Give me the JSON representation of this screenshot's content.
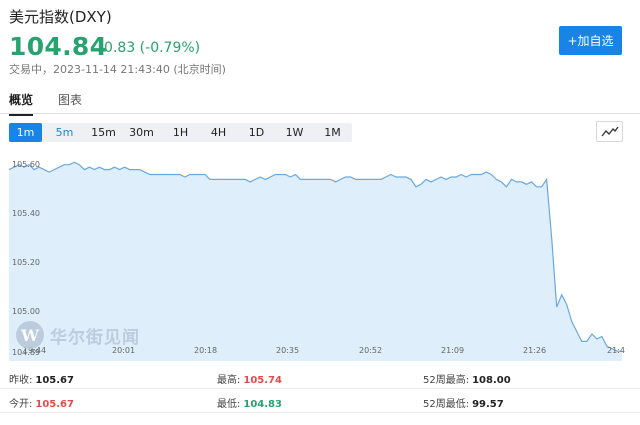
{
  "header": {
    "title": "美元指数(DXY)",
    "price": "104.84",
    "change": "-0.83 (-0.79%)",
    "status": "交易中，2023-11-14 21:43:40 (北京时间)",
    "add_button": "+加自选"
  },
  "tabs": [
    {
      "label": "概览",
      "active": true
    },
    {
      "label": "图表",
      "active": false
    }
  ],
  "intervals": [
    {
      "label": "1m",
      "active": true
    },
    {
      "label": "5m",
      "selected": true
    },
    {
      "label": "15m"
    },
    {
      "label": "30m"
    },
    {
      "label": "1H"
    },
    {
      "label": "4H"
    },
    {
      "label": "1D"
    },
    {
      "label": "1W"
    },
    {
      "label": "1M"
    }
  ],
  "chart_type_icon": "line-chart-icon",
  "watermark": {
    "logo_letter": "W",
    "text": "华尔街见闻"
  },
  "chart_data": {
    "type": "area",
    "y_tick_labels": [
      "105.60",
      "105.40",
      "105.20",
      "105.00",
      "104.89"
    ],
    "x_tick_labels": [
      "19:44",
      "20:01",
      "20:18",
      "20:35",
      "20:52",
      "21:09",
      "21:26",
      "21:4"
    ],
    "ylim": [
      104.82,
      105.68
    ],
    "x_range_minutes": [
      0,
      122
    ],
    "line_color": "#6aa9de",
    "fill_color": "#deeefb",
    "series": [
      {
        "points": [
          [
            0,
            105.6
          ],
          [
            1,
            105.61
          ],
          [
            2,
            105.62
          ],
          [
            3,
            105.61
          ],
          [
            4,
            105.62
          ],
          [
            5,
            105.6
          ],
          [
            6,
            105.61
          ],
          [
            7,
            105.6
          ],
          [
            8,
            105.59
          ],
          [
            9,
            105.6
          ],
          [
            10,
            105.61
          ],
          [
            11,
            105.62
          ],
          [
            12,
            105.62
          ],
          [
            13,
            105.63
          ],
          [
            14,
            105.62
          ],
          [
            15,
            105.6
          ],
          [
            16,
            105.61
          ],
          [
            17,
            105.6
          ],
          [
            18,
            105.61
          ],
          [
            19,
            105.6
          ],
          [
            20,
            105.6
          ],
          [
            21,
            105.61
          ],
          [
            22,
            105.6
          ],
          [
            23,
            105.61
          ],
          [
            24,
            105.6
          ],
          [
            25,
            105.6
          ],
          [
            26,
            105.6
          ],
          [
            27,
            105.59
          ],
          [
            28,
            105.58
          ],
          [
            29,
            105.58
          ],
          [
            30,
            105.58
          ],
          [
            31,
            105.58
          ],
          [
            32,
            105.58
          ],
          [
            33,
            105.58
          ],
          [
            34,
            105.58
          ],
          [
            35,
            105.57
          ],
          [
            36,
            105.58
          ],
          [
            37,
            105.58
          ],
          [
            38,
            105.58
          ],
          [
            39,
            105.58
          ],
          [
            40,
            105.56
          ],
          [
            41,
            105.56
          ],
          [
            42,
            105.56
          ],
          [
            43,
            105.56
          ],
          [
            44,
            105.56
          ],
          [
            45,
            105.56
          ],
          [
            46,
            105.56
          ],
          [
            47,
            105.56
          ],
          [
            48,
            105.55
          ],
          [
            49,
            105.56
          ],
          [
            50,
            105.57
          ],
          [
            51,
            105.56
          ],
          [
            52,
            105.57
          ],
          [
            53,
            105.58
          ],
          [
            54,
            105.58
          ],
          [
            55,
            105.58
          ],
          [
            56,
            105.57
          ],
          [
            57,
            105.58
          ],
          [
            58,
            105.56
          ],
          [
            59,
            105.56
          ],
          [
            60,
            105.56
          ],
          [
            61,
            105.56
          ],
          [
            62,
            105.56
          ],
          [
            63,
            105.56
          ],
          [
            64,
            105.56
          ],
          [
            65,
            105.55
          ],
          [
            66,
            105.56
          ],
          [
            67,
            105.57
          ],
          [
            68,
            105.57
          ],
          [
            69,
            105.56
          ],
          [
            70,
            105.56
          ],
          [
            71,
            105.56
          ],
          [
            72,
            105.56
          ],
          [
            73,
            105.56
          ],
          [
            74,
            105.56
          ],
          [
            75,
            105.57
          ],
          [
            76,
            105.58
          ],
          [
            77,
            105.57
          ],
          [
            78,
            105.57
          ],
          [
            79,
            105.57
          ],
          [
            80,
            105.56
          ],
          [
            81,
            105.53
          ],
          [
            82,
            105.54
          ],
          [
            83,
            105.56
          ],
          [
            84,
            105.55
          ],
          [
            85,
            105.56
          ],
          [
            86,
            105.57
          ],
          [
            87,
            105.56
          ],
          [
            88,
            105.57
          ],
          [
            89,
            105.57
          ],
          [
            90,
            105.58
          ],
          [
            91,
            105.57
          ],
          [
            92,
            105.58
          ],
          [
            93,
            105.58
          ],
          [
            94,
            105.58
          ],
          [
            95,
            105.59
          ],
          [
            96,
            105.58
          ],
          [
            97,
            105.56
          ],
          [
            98,
            105.55
          ],
          [
            99,
            105.53
          ],
          [
            100,
            105.56
          ],
          [
            101,
            105.55
          ],
          [
            102,
            105.55
          ],
          [
            103,
            105.54
          ],
          [
            104,
            105.55
          ],
          [
            105,
            105.53
          ],
          [
            106,
            105.53
          ],
          [
            107,
            105.56
          ],
          [
            108,
            105.32
          ],
          [
            109,
            105.04
          ],
          [
            110,
            105.09
          ],
          [
            111,
            105.05
          ],
          [
            112,
            104.98
          ],
          [
            113,
            104.94
          ],
          [
            114,
            104.9
          ],
          [
            115,
            104.9
          ],
          [
            116,
            104.93
          ],
          [
            117,
            104.91
          ],
          [
            118,
            104.92
          ],
          [
            119,
            104.88
          ],
          [
            120,
            104.87
          ],
          [
            121,
            104.86
          ],
          [
            122,
            104.86
          ]
        ]
      }
    ]
  },
  "stats": {
    "rows": [
      [
        {
          "label": "昨收:",
          "value": "105.67",
          "color": "dark"
        },
        {
          "label": "最高:",
          "value": "105.74",
          "color": "red"
        },
        {
          "label": "52周最高:",
          "value": "108.00",
          "color": "dark"
        }
      ],
      [
        {
          "label": "今开:",
          "value": "105.67",
          "color": "red"
        },
        {
          "label": "最低:",
          "value": "104.83",
          "color": "green"
        },
        {
          "label": "52周最低:",
          "value": "99.57",
          "color": "dark"
        }
      ]
    ]
  }
}
